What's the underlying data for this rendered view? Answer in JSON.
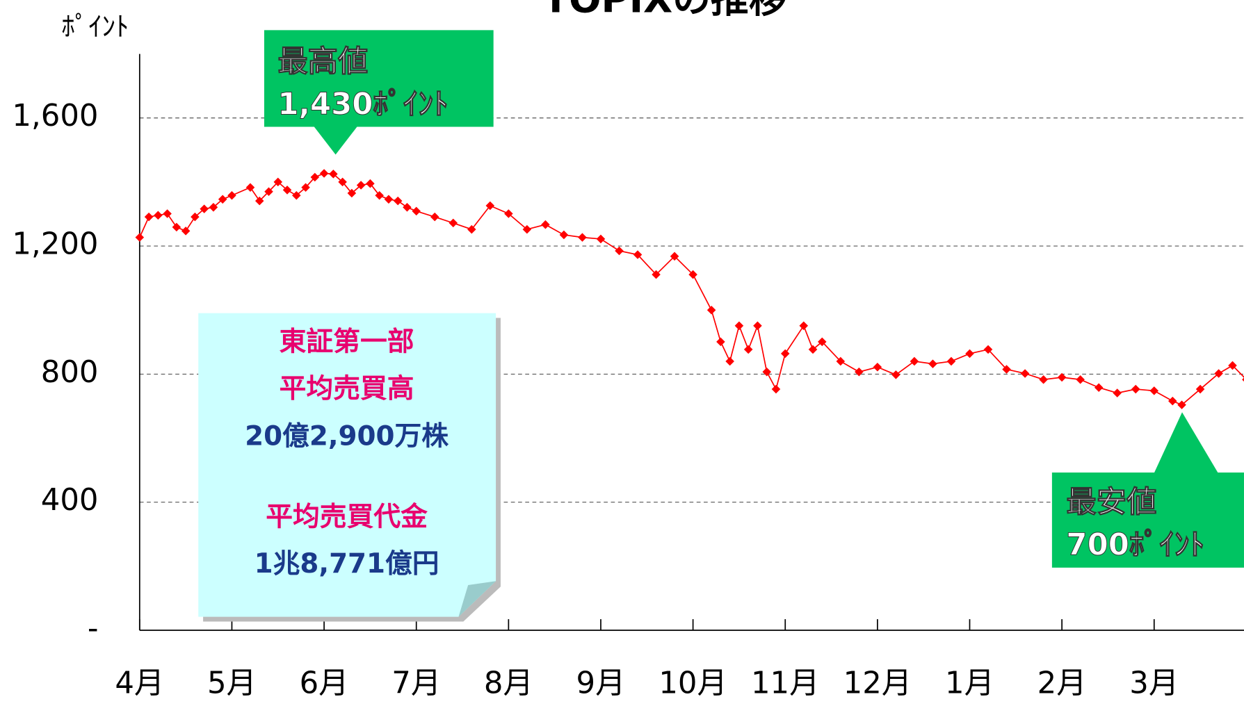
{
  "chart_data": {
    "type": "line",
    "title": "TOPIXの推移",
    "y_label": "ﾎﾟｲﾝﾄ",
    "xlim": [
      0,
      12
    ],
    "xticks": [
      {
        "value": 0,
        "label": "4月"
      },
      {
        "value": 1,
        "label": "5月"
      },
      {
        "value": 2,
        "label": "6月"
      },
      {
        "value": 3,
        "label": "7月"
      },
      {
        "value": 4,
        "label": "8月"
      },
      {
        "value": 5,
        "label": "9月"
      },
      {
        "value": 6,
        "label": "10月"
      },
      {
        "value": 7,
        "label": "11月"
      },
      {
        "value": 8,
        "label": "12月"
      },
      {
        "value": 9,
        "label": "1月"
      },
      {
        "value": 10,
        "label": "2月"
      },
      {
        "value": 11,
        "label": "3月"
      }
    ],
    "ylim": [
      0,
      1800
    ],
    "yticks": [
      {
        "value": 0,
        "label": "-"
      },
      400,
      800,
      {
        "value": 1200,
        "label": "1,200"
      },
      {
        "value": 1600,
        "label": "1,600"
      }
    ],
    "grid": true,
    "series": [
      {
        "color": "#ff0000",
        "x": [
          0,
          0.1,
          0.2,
          0.3,
          0.4,
          0.5,
          0.6,
          0.7,
          0.8,
          0.9,
          1.0,
          1.2,
          1.3,
          1.4,
          1.5,
          1.6,
          1.7,
          1.8,
          1.9,
          2.0,
          2.1,
          2.2,
          2.3,
          2.4,
          2.5,
          2.6,
          2.7,
          2.8,
          2.9,
          3.0,
          3.2,
          3.4,
          3.6,
          3.8,
          4.0,
          4.2,
          4.4,
          4.6,
          4.8,
          5.0,
          5.2,
          5.4,
          5.6,
          5.8,
          6.0,
          6.2,
          6.3,
          6.4,
          6.5,
          6.6,
          6.7,
          6.8,
          6.9,
          7.0,
          7.2,
          7.3,
          7.4,
          7.6,
          7.8,
          8.0,
          8.2,
          8.4,
          8.6,
          8.8,
          9.0,
          9.2,
          9.4,
          9.6,
          9.8,
          10.0,
          10.2,
          10.4,
          10.6,
          10.8,
          11.0,
          11.2,
          11.3,
          11.5,
          11.7,
          11.85,
          12
        ],
        "values": [
          1227,
          1291,
          1296,
          1301,
          1259,
          1247,
          1291,
          1316,
          1321,
          1346,
          1358,
          1383,
          1341,
          1370,
          1400,
          1375,
          1358,
          1383,
          1415,
          1427,
          1425,
          1400,
          1365,
          1390,
          1395,
          1358,
          1346,
          1341,
          1321,
          1309,
          1291,
          1272,
          1252,
          1326,
          1301,
          1252,
          1267,
          1235,
          1227,
          1222,
          1185,
          1173,
          1111,
          1168,
          1111,
          1000,
          901,
          840,
          951,
          877,
          951,
          807,
          753,
          864,
          951,
          877,
          901,
          840,
          807,
          822,
          798,
          840,
          832,
          840,
          864,
          877,
          815,
          802,
          783,
          790,
          783,
          758,
          741,
          753,
          748,
          716,
          704,
          753,
          802,
          827,
          783
        ]
      }
    ],
    "annotations": [
      {
        "lines": [
          "最高値",
          "1,430ﾎﾟｲﾝﾄ"
        ]
      },
      {
        "lines": [
          "最安値",
          "700ﾎﾟｲﾝﾄ"
        ]
      },
      {
        "lines": [
          "東証第一部",
          "平均売買高",
          "20億2,900万株",
          "平均売買代金",
          "1兆8,771億円"
        ]
      }
    ]
  }
}
